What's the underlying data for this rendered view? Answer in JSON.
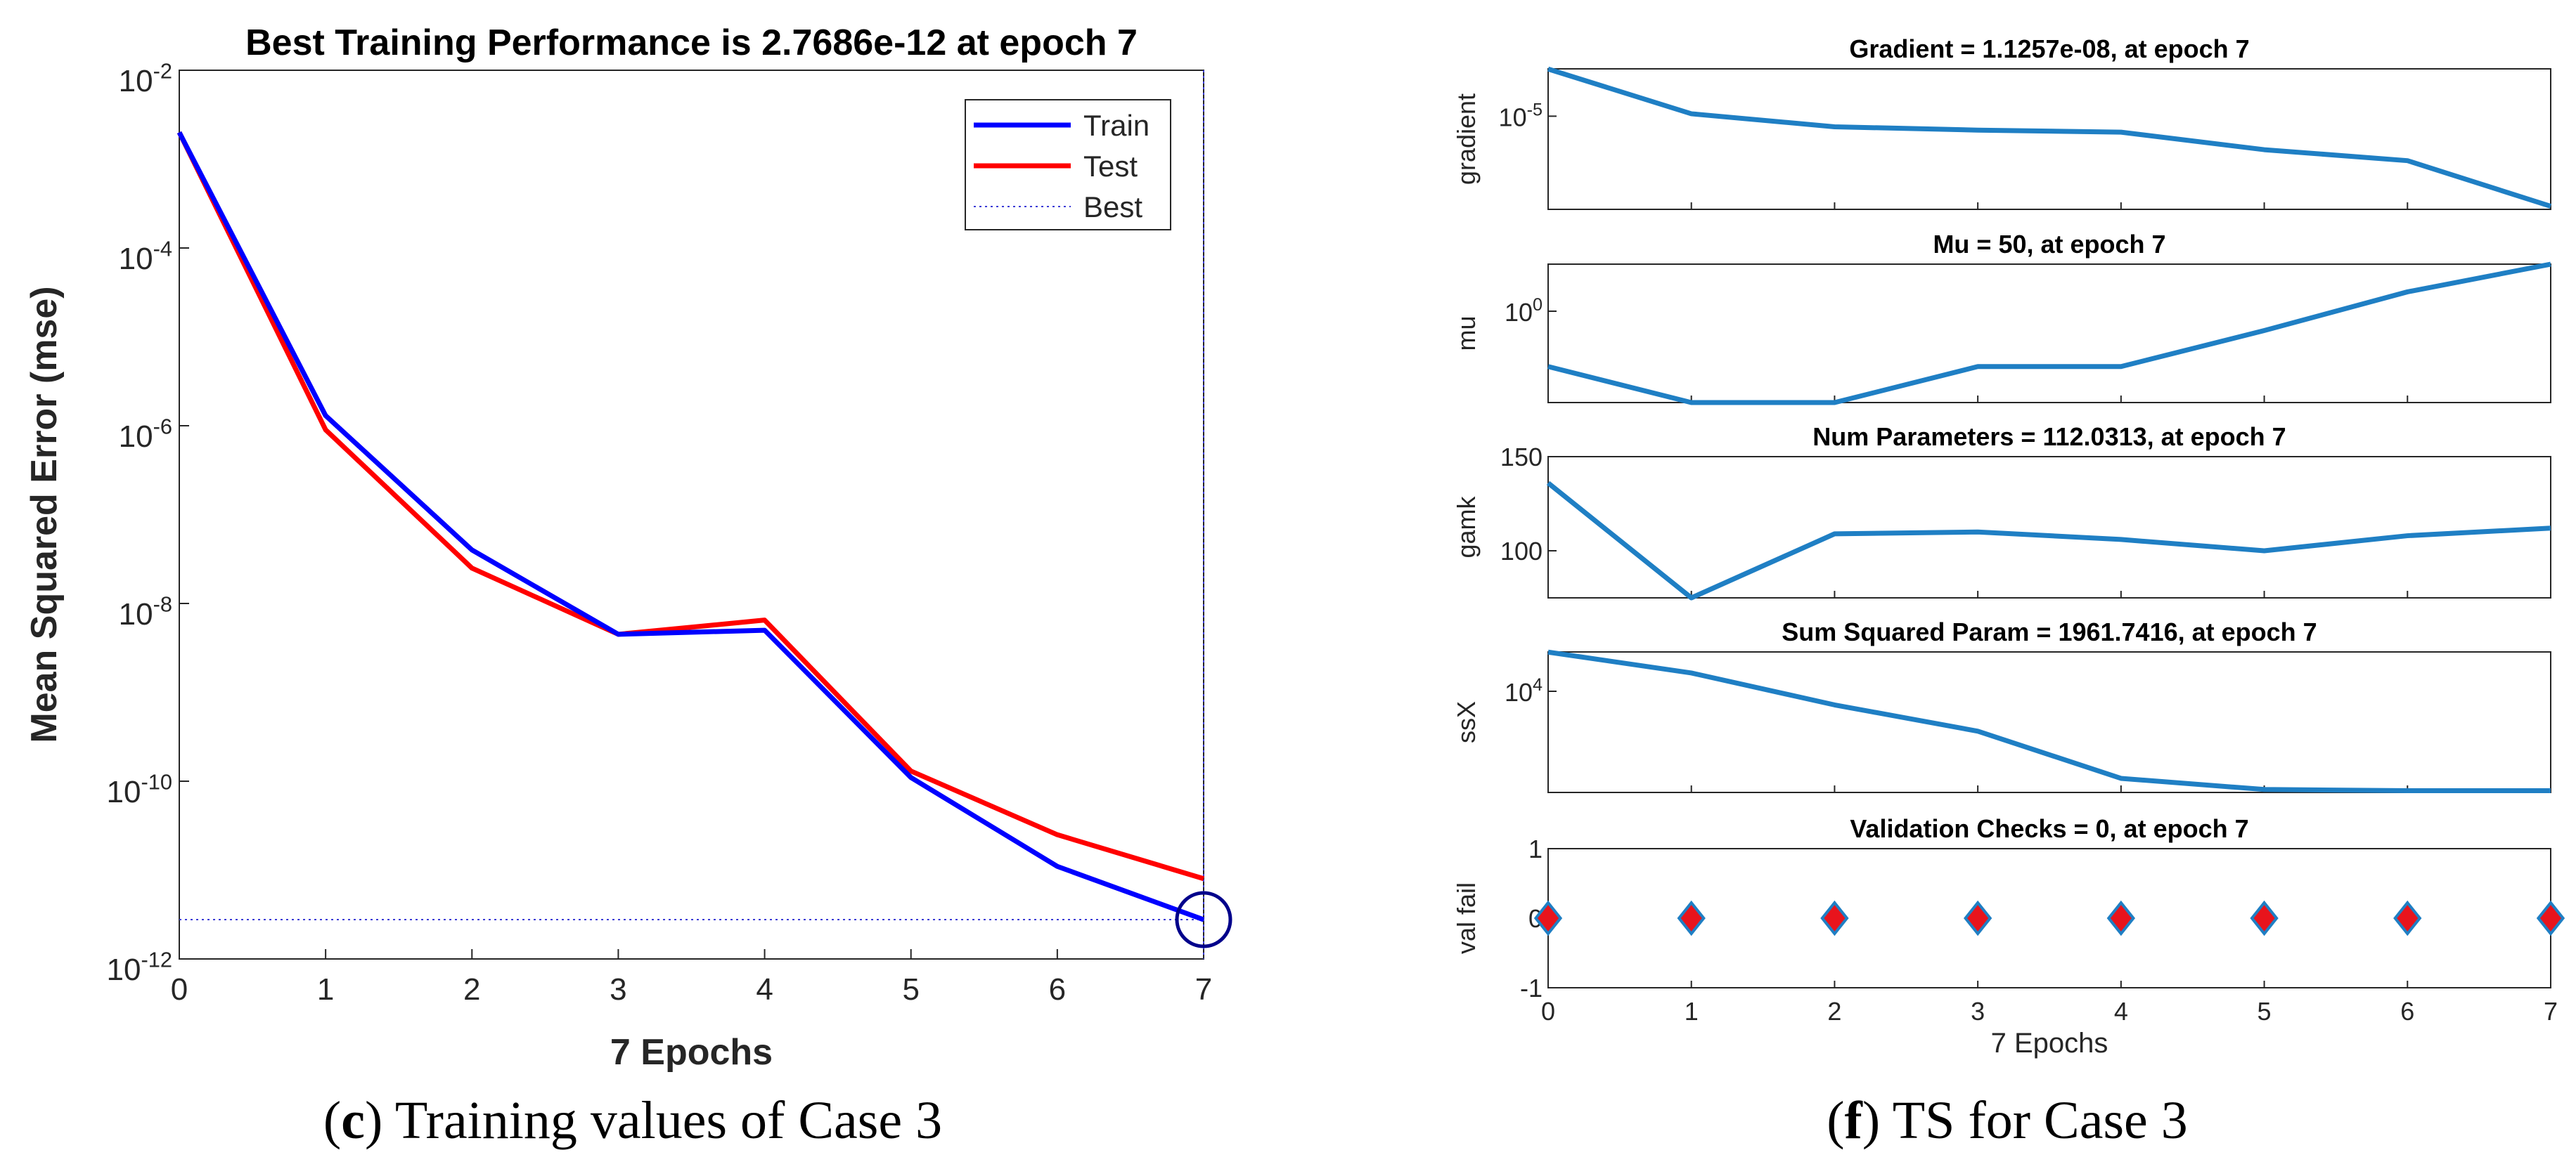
{
  "left_caption": {
    "letter": "c",
    "open": "(",
    "close": ")",
    "text": " Training values of Case 3"
  },
  "right_caption": {
    "letter": "f",
    "open": "(",
    "close": ")",
    "text": " TS for Case 3"
  },
  "colors": {
    "train": "#0000ff",
    "test": "#ff0000",
    "best_line": "#3b3bd6",
    "state_line": "#1f7fc4",
    "diamond_fill": "#e8141c",
    "diamond_edge": "#1f7fc4",
    "circle": "#00008b",
    "axis": "#262626",
    "grid_box": "#262626"
  },
  "chart_data": [
    {
      "id": "performance",
      "type": "line",
      "title": "Best Training Performance is 2.7686e-12 at epoch 7",
      "xlabel": "7 Epochs",
      "ylabel": "Mean Squared Error  (mse)",
      "yscale": "log",
      "xlim": [
        0,
        7
      ],
      "ylim_log10": [
        -12,
        -2
      ],
      "x_ticks": [
        0,
        1,
        2,
        3,
        4,
        5,
        6,
        7
      ],
      "x_tick_labels": [
        "0",
        "1",
        "2",
        "3",
        "4",
        "5",
        "6",
        "7"
      ],
      "y_ticks_log10": [
        -12,
        -10,
        -8,
        -6,
        -4,
        -2
      ],
      "y_tick_base": "10",
      "y_tick_exponents": [
        "-12",
        "-10",
        "-8",
        "-6",
        "-4",
        "-2"
      ],
      "grid": false,
      "legend_position": "top-right",
      "legend": [
        "Train",
        "Test",
        "Best"
      ],
      "x": [
        0,
        1,
        2,
        3,
        4,
        5,
        6,
        7
      ],
      "series": [
        {
          "name": "Train",
          "values": [
            0.002,
            1.3e-06,
            4e-08,
            4.5e-09,
            5e-09,
            1.1e-10,
            1.1e-11,
            2.77e-12
          ]
        },
        {
          "name": "Test",
          "values": [
            0.002,
            9e-07,
            2.5e-08,
            4.5e-09,
            6.5e-09,
            1.3e-10,
            2.5e-11,
            8e-12
          ]
        },
        {
          "name": "Best",
          "style": "dotted",
          "best_epoch": 7,
          "best_value": 2.7686e-12
        }
      ]
    },
    {
      "id": "gradient",
      "type": "line",
      "title": "Gradient = 1.1257e-08, at epoch 7",
      "ylabel": "gradient",
      "yscale": "log",
      "xlim": [
        0,
        7
      ],
      "ylim_log10": [
        -8.05,
        -3.45
      ],
      "y_ticks_log10": [
        -5
      ],
      "y_tick_base": "10",
      "y_tick_exponents": [
        "-5"
      ],
      "x": [
        0,
        1,
        2,
        3,
        4,
        5,
        6,
        7
      ],
      "values": [
        0.00035,
        1.2e-05,
        4.5e-06,
        3.5e-06,
        3e-06,
        8e-07,
        3.5e-07,
        1.1257e-08
      ]
    },
    {
      "id": "mu",
      "type": "line",
      "title": "Mu = 50, at epoch 7",
      "ylabel": "mu",
      "yscale": "log",
      "xlim": [
        0,
        7
      ],
      "ylim_log10": [
        -3.3,
        1.7
      ],
      "y_ticks_log10": [
        0
      ],
      "y_tick_base": "10",
      "y_tick_exponents": [
        "0"
      ],
      "x": [
        0,
        1,
        2,
        3,
        4,
        5,
        6,
        7
      ],
      "values": [
        0.01,
        0.0005,
        0.0005,
        0.01,
        0.01,
        0.2,
        5,
        50
      ]
    },
    {
      "id": "gamk",
      "type": "line",
      "title": "Num Parameters = 112.0313, at epoch 7",
      "ylabel": "gamk",
      "yscale": "linear",
      "xlim": [
        0,
        7
      ],
      "ylim": [
        75,
        150
      ],
      "y_ticks": [
        100,
        150
      ],
      "y_tick_labels": [
        "100",
        "150"
      ],
      "x": [
        0,
        1,
        2,
        3,
        4,
        5,
        6,
        7
      ],
      "values": [
        136,
        75,
        109,
        110,
        106,
        100,
        108,
        112.0313
      ]
    },
    {
      "id": "ssx",
      "type": "line",
      "title": "Sum Squared Param = 1961.7416, at epoch 7",
      "ylabel": "ssX",
      "yscale": "log",
      "xlim": [
        0,
        7
      ],
      "ylim_log10": [
        3.28,
        4.28
      ],
      "y_ticks_log10": [
        4
      ],
      "y_tick_base": "10",
      "y_tick_exponents": [
        "4"
      ],
      "x": [
        0,
        1,
        2,
        3,
        4,
        5,
        6,
        7
      ],
      "values": [
        19000,
        13500,
        8000,
        5200,
        2400,
        2000,
        1962,
        1961.7416
      ]
    },
    {
      "id": "valfail",
      "type": "scatter",
      "title": "Validation Checks = 0, at epoch 7",
      "ylabel": "val fail",
      "xlabel": "7 Epochs",
      "yscale": "linear",
      "xlim": [
        0,
        7
      ],
      "ylim": [
        -1,
        1
      ],
      "y_ticks": [
        -1,
        0,
        1
      ],
      "y_tick_labels": [
        "-1",
        "0",
        "1"
      ],
      "x_ticks": [
        0,
        1,
        2,
        3,
        4,
        5,
        6,
        7
      ],
      "x_tick_labels": [
        "0",
        "1",
        "2",
        "3",
        "4",
        "5",
        "6",
        "7"
      ],
      "x": [
        0,
        1,
        2,
        3,
        4,
        5,
        6,
        7
      ],
      "values": [
        0,
        0,
        0,
        0,
        0,
        0,
        0,
        0
      ]
    }
  ]
}
